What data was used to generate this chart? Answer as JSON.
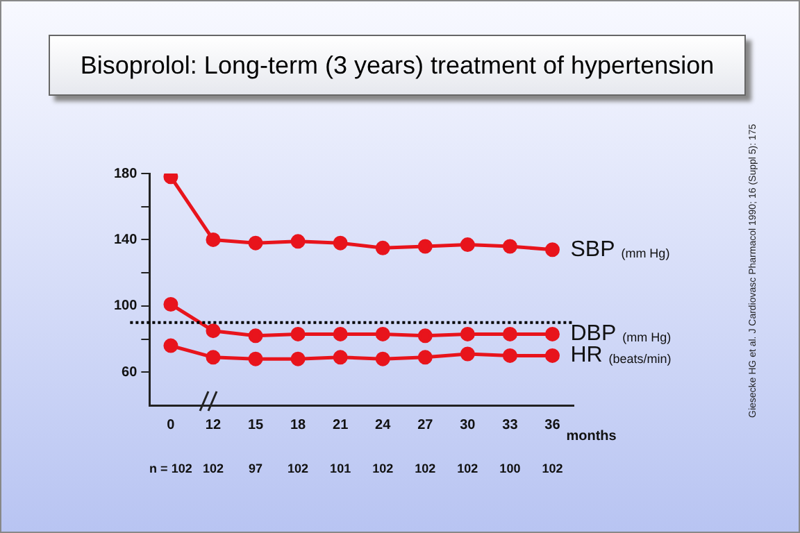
{
  "chart_data": {
    "type": "line",
    "title": "Bisoprolol: Long-term (3 years) treatment of hypertension",
    "xlabel": "months",
    "categories": [
      "0",
      "12",
      "15",
      "18",
      "21",
      "24",
      "27",
      "30",
      "33",
      "36"
    ],
    "series": [
      {
        "name": "SBP (mm Hg)",
        "color": "#e8141c",
        "values": [
          178,
          140,
          138,
          139,
          138,
          135,
          136,
          137,
          136,
          134
        ]
      },
      {
        "name": "DBP (mm Hg)",
        "color": "#e8141c",
        "values": [
          101,
          85,
          82,
          83,
          83,
          83,
          82,
          83,
          83,
          83
        ]
      },
      {
        "name": "HR (beats/min)",
        "color": "#e8141c",
        "values": [
          76,
          69,
          68,
          68,
          69,
          68,
          69,
          71,
          70,
          70
        ]
      }
    ],
    "ylim": [
      40,
      180
    ],
    "yticks": [
      60,
      {
        "value": 80,
        "label": null
      },
      100,
      {
        "value": 120,
        "label": null
      },
      140,
      {
        "value": 160,
        "label": null
      },
      180
    ],
    "ref_lines": [
      {
        "axis": "y",
        "value": 90,
        "color": "#000000",
        "line_style": "dotted"
      }
    ],
    "marker": "circle",
    "grid": false,
    "legend": false,
    "annotations": [
      "n = 102",
      "102",
      "97",
      "102",
      "101",
      "102",
      "102",
      "102",
      "100",
      "102",
      "Giesecke HG et al. J Cardiovasc Pharmacol 1990; 16 (Suppl 5): 175"
    ]
  }
}
